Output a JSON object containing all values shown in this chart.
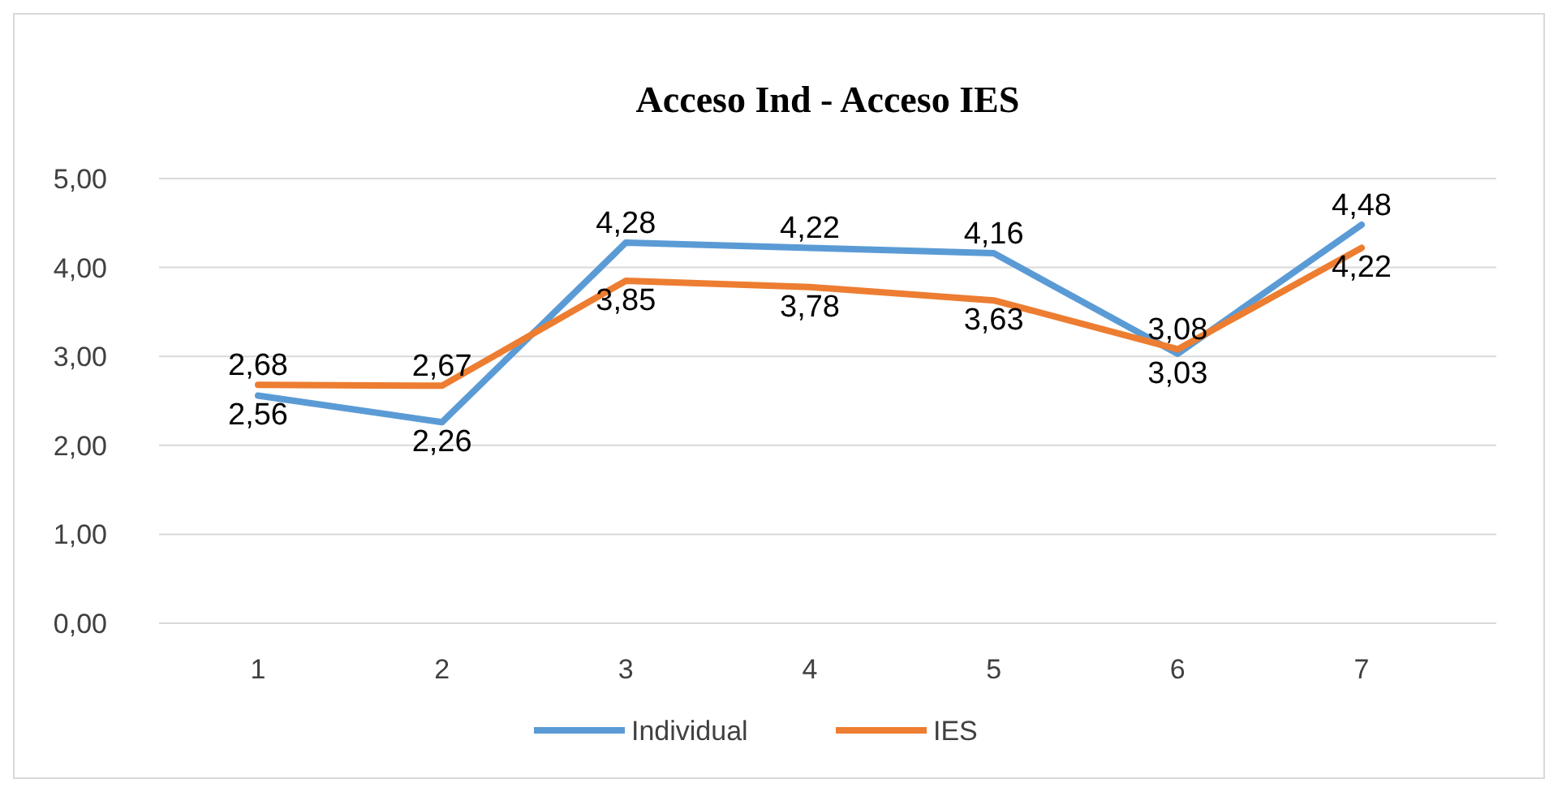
{
  "chart_data": {
    "type": "line",
    "title": "Acceso Ind - Acceso IES",
    "categories": [
      "1",
      "2",
      "3",
      "4",
      "5",
      "6",
      "7"
    ],
    "series": [
      {
        "name": "Individual",
        "color": "#5b9bd5",
        "values": [
          2.56,
          2.26,
          4.28,
          4.22,
          4.16,
          3.03,
          4.48
        ],
        "value_labels": [
          "2,56",
          "2,26",
          "4,28",
          "4,22",
          "4,16",
          "3,03",
          "4,48"
        ]
      },
      {
        "name": "IES",
        "color": "#ed7d31",
        "values": [
          2.68,
          2.67,
          3.85,
          3.78,
          3.63,
          3.08,
          4.22
        ],
        "value_labels": [
          "2,68",
          "2,67",
          "3,85",
          "3,78",
          "3,63",
          "3,08",
          "4,22"
        ]
      }
    ],
    "ylim": [
      0,
      5
    ],
    "yticks": [
      {
        "value": 0,
        "label": "0,00"
      },
      {
        "value": 1,
        "label": "1,00"
      },
      {
        "value": 2,
        "label": "2,00"
      },
      {
        "value": 3,
        "label": "3,00"
      },
      {
        "value": 4,
        "label": "4,00"
      },
      {
        "value": 5,
        "label": "5,00"
      }
    ],
    "grid": "y",
    "legend": "bottom",
    "marker": "none",
    "line_style": "solid"
  }
}
